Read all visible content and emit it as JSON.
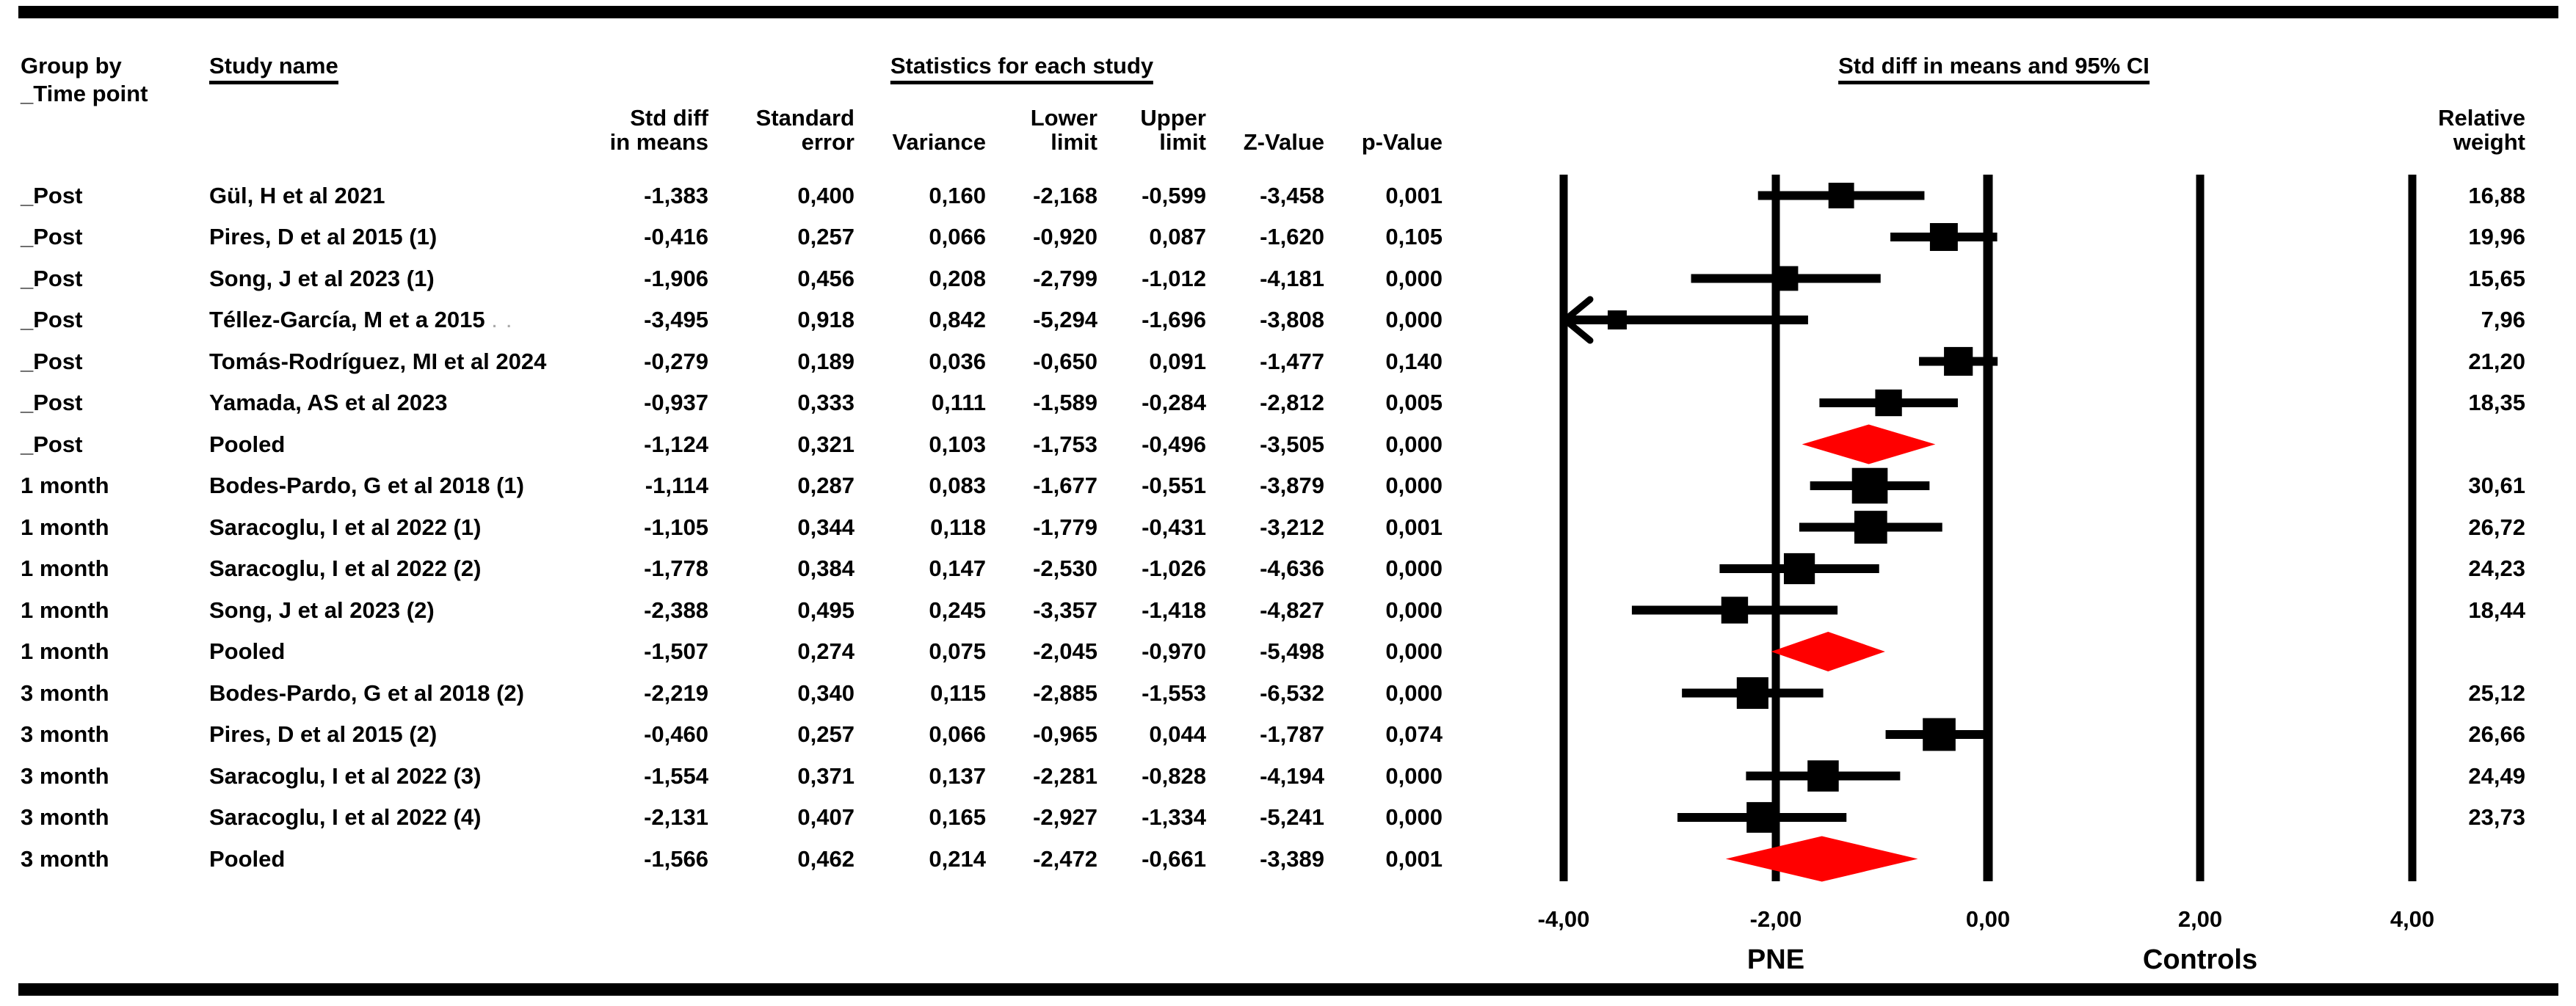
{
  "header": {
    "group_by": [
      "Group by",
      "_Time point"
    ],
    "study_name": "Study name",
    "stats_title": "Statistics for each study",
    "plot_title": "Std diff in means and 95% CI",
    "stat_cols": [
      [
        "Std diff",
        "in means"
      ],
      [
        "Standard",
        "error"
      ],
      [
        "",
        "Variance"
      ],
      [
        "Lower",
        "limit"
      ],
      [
        "Upper",
        "limit"
      ],
      [
        "",
        "Z-Value"
      ],
      [
        "",
        "p-Value"
      ]
    ],
    "relative_weight": [
      "Relative",
      "weight"
    ]
  },
  "axis": {
    "left_label": "PNE",
    "right_label": "Controls"
  },
  "colors": {
    "marker": "#000000",
    "pooled_diamond": "#ff0000",
    "text": "#000000"
  },
  "chart_data": {
    "type": "forest",
    "title": "Std diff in means and 95% CI",
    "effect_measure": "Std diff in means",
    "xlim": [
      -4,
      4
    ],
    "x_ticks": [
      -4,
      -2,
      0,
      2,
      4
    ],
    "favours_left": "PNE",
    "favours_right": "Controls",
    "groups": [
      "_Post",
      "1 month",
      "3 month"
    ],
    "rows": [
      {
        "group": "_Post",
        "study": "Gül, H et al 2021",
        "est": -1.383,
        "se": 0.4,
        "var": 0.16,
        "ll": -2.168,
        "ul": -0.599,
        "z": -3.458,
        "p": 0.001,
        "weight": 16.88,
        "pooled": false
      },
      {
        "group": "_Post",
        "study": "Pires, D et al 2015 (1)",
        "est": -0.416,
        "se": 0.257,
        "var": 0.066,
        "ll": -0.92,
        "ul": 0.087,
        "z": -1.62,
        "p": 0.105,
        "weight": 19.96,
        "pooled": false
      },
      {
        "group": "_Post",
        "study": "Song, J et al 2023 (1)",
        "est": -1.906,
        "se": 0.456,
        "var": 0.208,
        "ll": -2.799,
        "ul": -1.012,
        "z": -4.181,
        "p": 0.0,
        "weight": 15.65,
        "pooled": false
      },
      {
        "group": "_Post",
        "study": "Téllez-García, M et a 2015",
        "suffix": ". .",
        "est": -3.495,
        "se": 0.918,
        "var": 0.842,
        "ll": -5.294,
        "ul": -1.696,
        "z": -3.808,
        "p": 0.0,
        "weight": 7.96,
        "pooled": false
      },
      {
        "group": "_Post",
        "study": "Tomás-Rodríguez, MI et al 2024",
        "est": -0.279,
        "se": 0.189,
        "var": 0.036,
        "ll": -0.65,
        "ul": 0.091,
        "z": -1.477,
        "p": 0.14,
        "weight": 21.2,
        "pooled": false
      },
      {
        "group": "_Post",
        "study": "Yamada, AS et al 2023",
        "est": -0.937,
        "se": 0.333,
        "var": 0.111,
        "ll": -1.589,
        "ul": -0.284,
        "z": -2.812,
        "p": 0.005,
        "weight": 18.35,
        "pooled": false
      },
      {
        "group": "_Post",
        "study": "Pooled",
        "est": -1.124,
        "se": 0.321,
        "var": 0.103,
        "ll": -1.753,
        "ul": -0.496,
        "z": -3.505,
        "p": 0.0,
        "weight": null,
        "pooled": true
      },
      {
        "group": "1 month",
        "study": "Bodes-Pardo, G et al 2018 (1)",
        "est": -1.114,
        "se": 0.287,
        "var": 0.083,
        "ll": -1.677,
        "ul": -0.551,
        "z": -3.879,
        "p": 0.0,
        "weight": 30.61,
        "pooled": false
      },
      {
        "group": "1 month",
        "study": "Saracoglu, I et al 2022 (1)",
        "est": -1.105,
        "se": 0.344,
        "var": 0.118,
        "ll": -1.779,
        "ul": -0.431,
        "z": -3.212,
        "p": 0.001,
        "weight": 26.72,
        "pooled": false
      },
      {
        "group": "1 month",
        "study": "Saracoglu, I et al 2022 (2)",
        "est": -1.778,
        "se": 0.384,
        "var": 0.147,
        "ll": -2.53,
        "ul": -1.026,
        "z": -4.636,
        "p": 0.0,
        "weight": 24.23,
        "pooled": false
      },
      {
        "group": "1 month",
        "study": "Song, J et al 2023 (2)",
        "est": -2.388,
        "se": 0.495,
        "var": 0.245,
        "ll": -3.357,
        "ul": -1.418,
        "z": -4.827,
        "p": 0.0,
        "weight": 18.44,
        "pooled": false
      },
      {
        "group": "1 month",
        "study": "Pooled",
        "est": -1.507,
        "se": 0.274,
        "var": 0.075,
        "ll": -2.045,
        "ul": -0.97,
        "z": -5.498,
        "p": 0.0,
        "weight": null,
        "pooled": true
      },
      {
        "group": "3 month",
        "study": "Bodes-Pardo, G et al 2018 (2)",
        "est": -2.219,
        "se": 0.34,
        "var": 0.115,
        "ll": -2.885,
        "ul": -1.553,
        "z": -6.532,
        "p": 0.0,
        "weight": 25.12,
        "pooled": false
      },
      {
        "group": "3 month",
        "study": "Pires, D et al 2015 (2)",
        "est": -0.46,
        "se": 0.257,
        "var": 0.066,
        "ll": -0.965,
        "ul": 0.044,
        "z": -1.787,
        "p": 0.074,
        "weight": 26.66,
        "pooled": false
      },
      {
        "group": "3 month",
        "study": "Saracoglu, I et al 2022 (3)",
        "est": -1.554,
        "se": 0.371,
        "var": 0.137,
        "ll": -2.281,
        "ul": -0.828,
        "z": -4.194,
        "p": 0.0,
        "weight": 24.49,
        "pooled": false
      },
      {
        "group": "3 month",
        "study": "Saracoglu, I et al 2022 (4)",
        "est": -2.131,
        "se": 0.407,
        "var": 0.165,
        "ll": -2.927,
        "ul": -1.334,
        "z": -5.241,
        "p": 0.0,
        "weight": 23.73,
        "pooled": false
      },
      {
        "group": "3 month",
        "study": "Pooled",
        "est": -1.566,
        "se": 0.462,
        "var": 0.214,
        "ll": -2.472,
        "ul": -0.661,
        "z": -3.389,
        "p": 0.001,
        "weight": null,
        "pooled": true
      }
    ]
  }
}
